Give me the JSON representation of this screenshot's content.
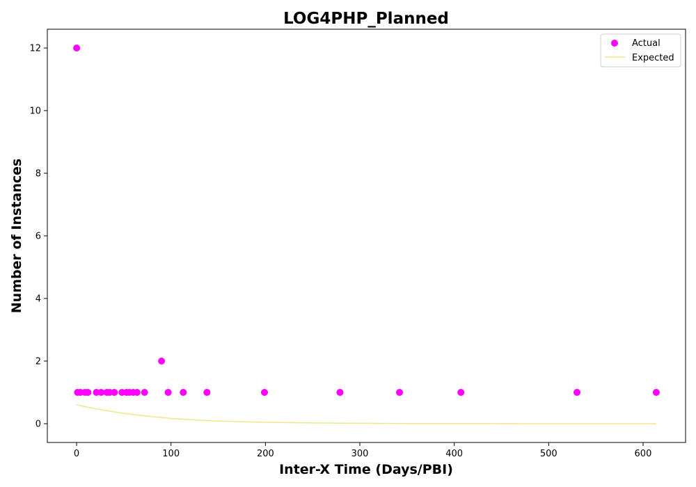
{
  "chart_data": {
    "type": "scatter",
    "title": "LOG4PHP_Planned",
    "xlabel": "Inter-X Time (Days/PBI)",
    "ylabel": "Number of Instances",
    "xlim": [
      -31,
      645
    ],
    "ylim": [
      -0.6,
      12.6
    ],
    "xticks": [
      0,
      100,
      200,
      300,
      400,
      500,
      600
    ],
    "yticks": [
      0,
      2,
      4,
      6,
      8,
      10,
      12
    ],
    "grid": false,
    "legend_position": "top-right",
    "series": [
      {
        "name": "Actual",
        "kind": "scatter",
        "color": "#ff00ff",
        "points": [
          [
            0,
            12
          ],
          [
            1,
            1
          ],
          [
            4,
            1
          ],
          [
            9,
            1
          ],
          [
            12,
            1
          ],
          [
            21,
            1
          ],
          [
            26,
            1
          ],
          [
            32,
            1
          ],
          [
            35,
            1
          ],
          [
            40,
            1
          ],
          [
            48,
            1
          ],
          [
            53,
            1
          ],
          [
            56,
            1
          ],
          [
            60,
            1
          ],
          [
            64,
            1
          ],
          [
            72,
            1
          ],
          [
            90,
            2
          ],
          [
            97,
            1
          ],
          [
            113,
            1
          ],
          [
            138,
            1
          ],
          [
            199,
            1
          ],
          [
            279,
            1
          ],
          [
            342,
            1
          ],
          [
            407,
            1
          ],
          [
            530,
            1
          ],
          [
            614,
            1
          ]
        ]
      },
      {
        "name": "Expected",
        "kind": "line",
        "color": "#f0e68c",
        "points": [
          [
            0,
            0.6
          ],
          [
            25,
            0.45
          ],
          [
            50,
            0.33
          ],
          [
            75,
            0.24
          ],
          [
            100,
            0.17
          ],
          [
            125,
            0.12
          ],
          [
            150,
            0.085
          ],
          [
            175,
            0.06
          ],
          [
            200,
            0.045
          ],
          [
            250,
            0.025
          ],
          [
            300,
            0.013
          ],
          [
            350,
            0.007
          ],
          [
            400,
            0.004
          ],
          [
            500,
            0.001
          ],
          [
            614,
            0.0
          ]
        ]
      }
    ]
  }
}
